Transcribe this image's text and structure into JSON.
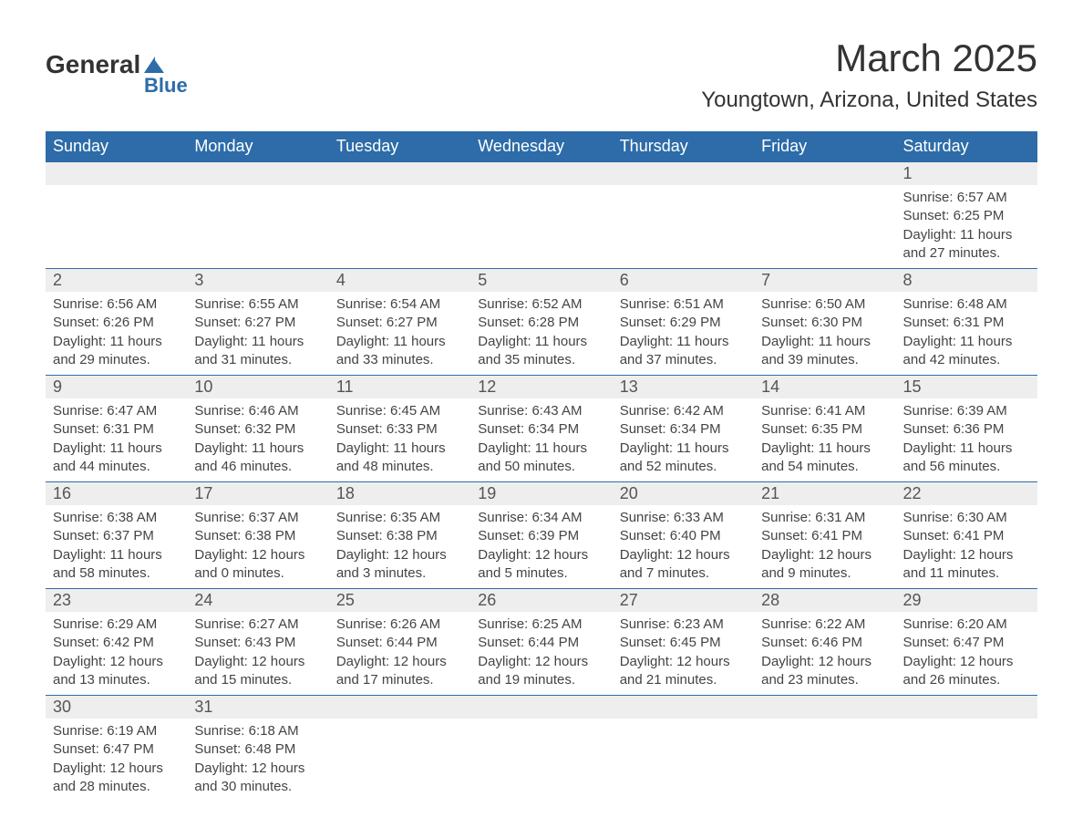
{
  "logo": {
    "text1": "General",
    "text2": "Blue"
  },
  "title": "March 2025",
  "location": "Youngtown, Arizona, United States",
  "colors": {
    "headerBg": "#2d6ca8",
    "headerText": "#ffffff",
    "dayNumBg": "#eeeeee",
    "borderColor": "#2d6ca8",
    "textColor": "#444444"
  },
  "dayNames": [
    "Sunday",
    "Monday",
    "Tuesday",
    "Wednesday",
    "Thursday",
    "Friday",
    "Saturday"
  ],
  "weeks": [
    [
      null,
      null,
      null,
      null,
      null,
      null,
      {
        "n": "1",
        "sr": "6:57 AM",
        "ss": "6:25 PM",
        "dh": "11",
        "dm": "27"
      }
    ],
    [
      {
        "n": "2",
        "sr": "6:56 AM",
        "ss": "6:26 PM",
        "dh": "11",
        "dm": "29"
      },
      {
        "n": "3",
        "sr": "6:55 AM",
        "ss": "6:27 PM",
        "dh": "11",
        "dm": "31"
      },
      {
        "n": "4",
        "sr": "6:54 AM",
        "ss": "6:27 PM",
        "dh": "11",
        "dm": "33"
      },
      {
        "n": "5",
        "sr": "6:52 AM",
        "ss": "6:28 PM",
        "dh": "11",
        "dm": "35"
      },
      {
        "n": "6",
        "sr": "6:51 AM",
        "ss": "6:29 PM",
        "dh": "11",
        "dm": "37"
      },
      {
        "n": "7",
        "sr": "6:50 AM",
        "ss": "6:30 PM",
        "dh": "11",
        "dm": "39"
      },
      {
        "n": "8",
        "sr": "6:48 AM",
        "ss": "6:31 PM",
        "dh": "11",
        "dm": "42"
      }
    ],
    [
      {
        "n": "9",
        "sr": "6:47 AM",
        "ss": "6:31 PM",
        "dh": "11",
        "dm": "44"
      },
      {
        "n": "10",
        "sr": "6:46 AM",
        "ss": "6:32 PM",
        "dh": "11",
        "dm": "46"
      },
      {
        "n": "11",
        "sr": "6:45 AM",
        "ss": "6:33 PM",
        "dh": "11",
        "dm": "48"
      },
      {
        "n": "12",
        "sr": "6:43 AM",
        "ss": "6:34 PM",
        "dh": "11",
        "dm": "50"
      },
      {
        "n": "13",
        "sr": "6:42 AM",
        "ss": "6:34 PM",
        "dh": "11",
        "dm": "52"
      },
      {
        "n": "14",
        "sr": "6:41 AM",
        "ss": "6:35 PM",
        "dh": "11",
        "dm": "54"
      },
      {
        "n": "15",
        "sr": "6:39 AM",
        "ss": "6:36 PM",
        "dh": "11",
        "dm": "56"
      }
    ],
    [
      {
        "n": "16",
        "sr": "6:38 AM",
        "ss": "6:37 PM",
        "dh": "11",
        "dm": "58"
      },
      {
        "n": "17",
        "sr": "6:37 AM",
        "ss": "6:38 PM",
        "dh": "12",
        "dm": "0"
      },
      {
        "n": "18",
        "sr": "6:35 AM",
        "ss": "6:38 PM",
        "dh": "12",
        "dm": "3"
      },
      {
        "n": "19",
        "sr": "6:34 AM",
        "ss": "6:39 PM",
        "dh": "12",
        "dm": "5"
      },
      {
        "n": "20",
        "sr": "6:33 AM",
        "ss": "6:40 PM",
        "dh": "12",
        "dm": "7"
      },
      {
        "n": "21",
        "sr": "6:31 AM",
        "ss": "6:41 PM",
        "dh": "12",
        "dm": "9"
      },
      {
        "n": "22",
        "sr": "6:30 AM",
        "ss": "6:41 PM",
        "dh": "12",
        "dm": "11"
      }
    ],
    [
      {
        "n": "23",
        "sr": "6:29 AM",
        "ss": "6:42 PM",
        "dh": "12",
        "dm": "13"
      },
      {
        "n": "24",
        "sr": "6:27 AM",
        "ss": "6:43 PM",
        "dh": "12",
        "dm": "15"
      },
      {
        "n": "25",
        "sr": "6:26 AM",
        "ss": "6:44 PM",
        "dh": "12",
        "dm": "17"
      },
      {
        "n": "26",
        "sr": "6:25 AM",
        "ss": "6:44 PM",
        "dh": "12",
        "dm": "19"
      },
      {
        "n": "27",
        "sr": "6:23 AM",
        "ss": "6:45 PM",
        "dh": "12",
        "dm": "21"
      },
      {
        "n": "28",
        "sr": "6:22 AM",
        "ss": "6:46 PM",
        "dh": "12",
        "dm": "23"
      },
      {
        "n": "29",
        "sr": "6:20 AM",
        "ss": "6:47 PM",
        "dh": "12",
        "dm": "26"
      }
    ],
    [
      {
        "n": "30",
        "sr": "6:19 AM",
        "ss": "6:47 PM",
        "dh": "12",
        "dm": "28"
      },
      {
        "n": "31",
        "sr": "6:18 AM",
        "ss": "6:48 PM",
        "dh": "12",
        "dm": "30"
      },
      null,
      null,
      null,
      null,
      null
    ]
  ],
  "labels": {
    "sunrise": "Sunrise:",
    "sunset": "Sunset:",
    "daylight1": "Daylight:",
    "daylight2": "hours and",
    "daylight3": "minutes."
  }
}
